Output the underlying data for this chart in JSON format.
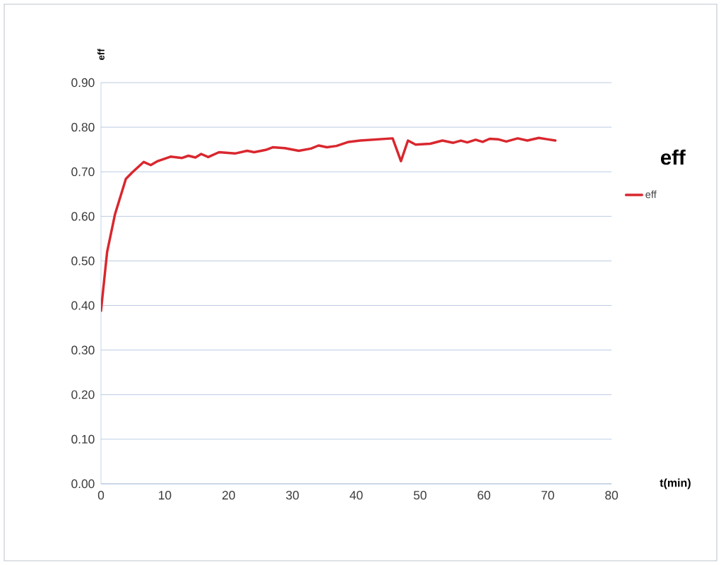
{
  "chart_data": {
    "type": "line",
    "title": "eff",
    "xlabel": "t(min)",
    "ylabel": "eff",
    "x": [
      0,
      0.96,
      2.2,
      3.9,
      5,
      6.7,
      7.8,
      8.9,
      10.9,
      12.7,
      13.7,
      14.8,
      15.7,
      16.8,
      18.5,
      21.0,
      22.9,
      24,
      25.8,
      26.9,
      28.8,
      31.0,
      32.9,
      34.1,
      35.4,
      36.9,
      38.8,
      40.6,
      45.7,
      47.0,
      48.1,
      49.3,
      51.6,
      53.5,
      55.2,
      56.4,
      57.4,
      58.7,
      59.8,
      60.9,
      62.2,
      63.5,
      65.3,
      66.8,
      68.6,
      69.9,
      71.2
    ],
    "series": [
      {
        "name": "eff",
        "color": "#d9272e",
        "values": [
          0.388,
          0.52,
          0.605,
          0.684,
          0.7,
          0.722,
          0.715,
          0.724,
          0.734,
          0.731,
          0.736,
          0.732,
          0.74,
          0.733,
          0.744,
          0.741,
          0.747,
          0.744,
          0.749,
          0.755,
          0.753,
          0.747,
          0.752,
          0.759,
          0.755,
          0.758,
          0.767,
          0.77,
          0.775,
          0.724,
          0.77,
          0.761,
          0.763,
          0.77,
          0.765,
          0.77,
          0.766,
          0.772,
          0.767,
          0.774,
          0.773,
          0.768,
          0.775,
          0.77,
          0.776,
          0.773,
          0.77
        ]
      }
    ],
    "xlim": [
      0,
      80
    ],
    "xticks": [
      0,
      10,
      20,
      30,
      40,
      50,
      60,
      70,
      80
    ],
    "ylim": [
      0,
      0.9
    ],
    "yticks": [
      {
        "value": 0,
        "label": "0.00"
      },
      {
        "value": 0.1,
        "label": "0.10"
      },
      {
        "value": 0.2,
        "label": "0.20"
      },
      {
        "value": 0.3,
        "label": "0.30"
      },
      {
        "value": 0.4,
        "label": "0.40"
      },
      {
        "value": 0.5,
        "label": "0.50"
      },
      {
        "value": 0.6,
        "label": "0.60"
      },
      {
        "value": 0.7,
        "label": "0.70"
      },
      {
        "value": 0.8,
        "label": "0.80"
      },
      {
        "value": 0.9,
        "label": "0.90"
      }
    ],
    "grid": "y",
    "legend": "right",
    "marker": "none",
    "line_style": "solid"
  }
}
